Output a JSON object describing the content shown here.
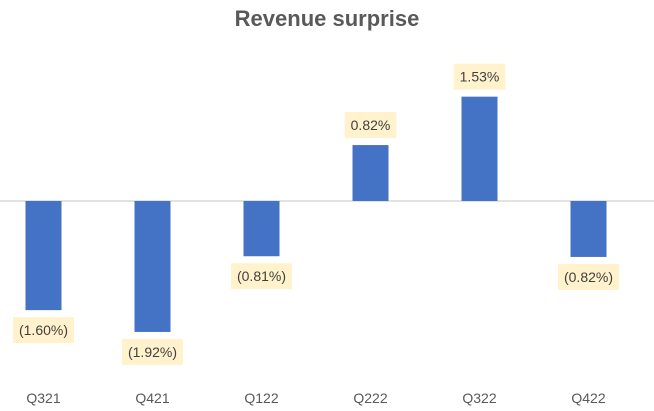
{
  "chart_data": {
    "type": "bar",
    "title": "Revenue surprise",
    "categories": [
      "Q321",
      "Q421",
      "Q122",
      "Q222",
      "Q322",
      "Q422"
    ],
    "values": [
      -1.6,
      -1.92,
      -0.81,
      0.82,
      1.53,
      -0.82
    ],
    "data_labels": [
      "(1.60%)",
      "(1.92%)",
      "(0.81%)",
      "0.82%",
      "1.53%",
      "(0.82%)"
    ],
    "unit": "%",
    "bar_color": "#4472C4",
    "label_background": "#FFF2CC",
    "axis_color": "#D9D9D9",
    "grid": false,
    "legend": "none"
  }
}
